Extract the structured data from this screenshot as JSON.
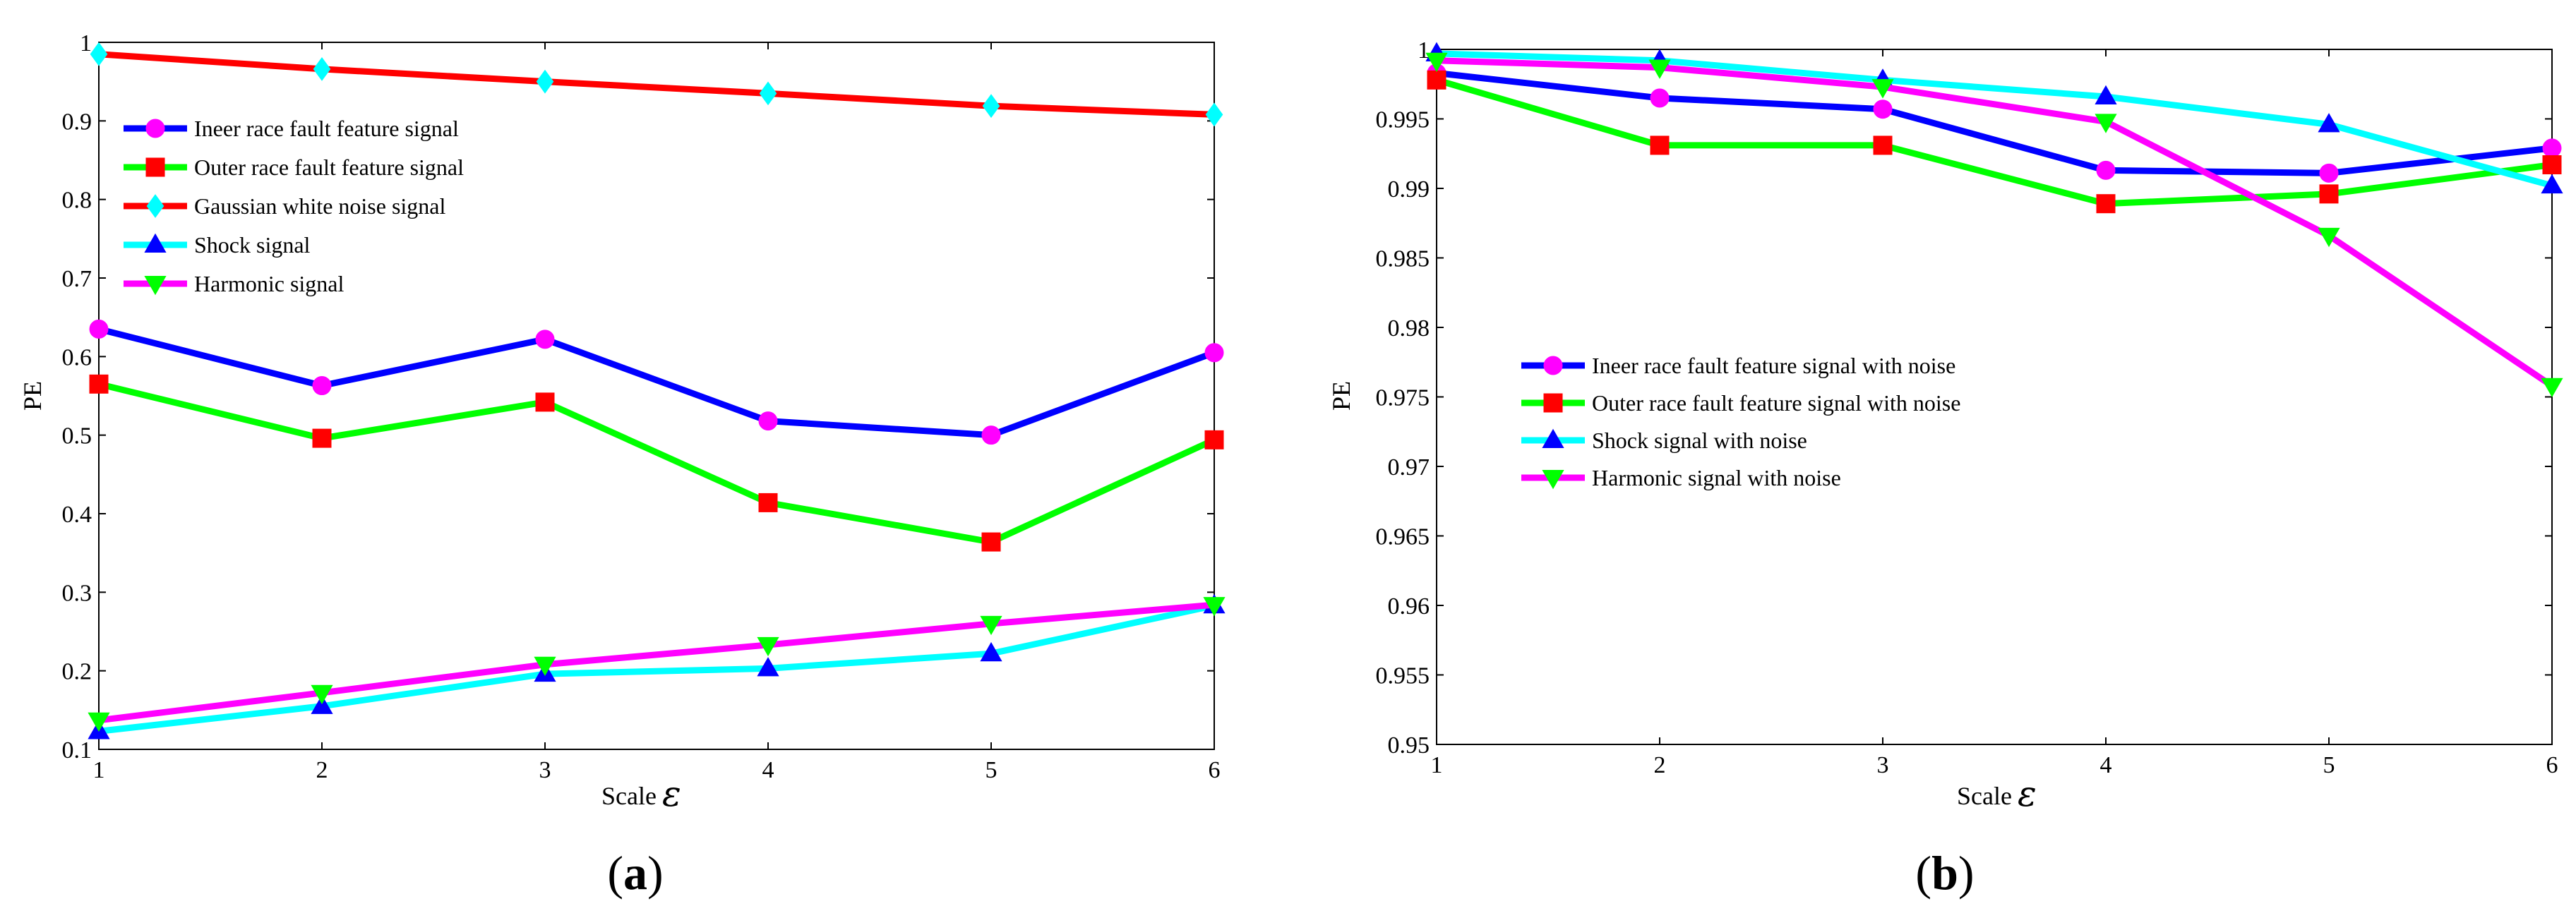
{
  "chart_data": [
    {
      "type": "line",
      "panel_label": "a",
      "xlabel": "Scale",
      "xlabel_symbol": "ε",
      "ylabel": "PE",
      "x": [
        1,
        2,
        3,
        4,
        5,
        6
      ],
      "xlim": [
        1,
        6
      ],
      "ylim": [
        0.1,
        1.0
      ],
      "yticks": [
        0.1,
        0.2,
        0.3,
        0.4,
        0.5,
        0.6,
        0.7,
        0.8,
        0.9,
        1.0
      ],
      "ytick_labels": [
        "0.1",
        "0.2",
        "0.3",
        "0.4",
        "0.5",
        "0.6",
        "0.7",
        "0.8",
        "0.9",
        "1"
      ],
      "legend_position": "top-left",
      "series": [
        {
          "name": "Ineer race fault feature signal",
          "line_color": "#0000ff",
          "marker": "circle",
          "marker_color": "#ff00ff",
          "values": [
            0.635,
            0.563,
            0.622,
            0.518,
            0.5,
            0.605
          ]
        },
        {
          "name": "Outer race fault feature signal",
          "line_color": "#00ff00",
          "marker": "square",
          "marker_color": "#ff0000",
          "values": [
            0.565,
            0.496,
            0.542,
            0.414,
            0.364,
            0.494
          ]
        },
        {
          "name": "Gaussian white noise signal",
          "line_color": "#ff0000",
          "marker": "diamond",
          "marker_color": "#00ffff",
          "values": [
            0.985,
            0.966,
            0.95,
            0.935,
            0.919,
            0.908
          ]
        },
        {
          "name": "Shock signal",
          "line_color": "#00ffff",
          "marker": "triangle-up",
          "marker_color": "#0000ff",
          "values": [
            0.123,
            0.155,
            0.196,
            0.203,
            0.222,
            0.283
          ]
        },
        {
          "name": "Harmonic signal",
          "line_color": "#ff00ff",
          "marker": "triangle-down",
          "marker_color": "#00ff00",
          "values": [
            0.137,
            0.172,
            0.208,
            0.233,
            0.26,
            0.284
          ]
        }
      ]
    },
    {
      "type": "line",
      "panel_label": "b",
      "xlabel": "Scale",
      "xlabel_symbol": "ε",
      "ylabel": "PE",
      "x": [
        1,
        2,
        3,
        4,
        5,
        6
      ],
      "xlim": [
        1,
        6
      ],
      "ylim": [
        0.95,
        1.0
      ],
      "yticks": [
        0.95,
        0.955,
        0.96,
        0.965,
        0.97,
        0.975,
        0.98,
        0.985,
        0.99,
        0.995,
        1.0
      ],
      "ytick_labels": [
        "0.95",
        "0.955",
        "0.96",
        "0.965",
        "0.97",
        "0.975",
        "0.98",
        "0.985",
        "0.99",
        "0.995",
        "1"
      ],
      "legend_position": "center-left",
      "series": [
        {
          "name": "Ineer race fault feature signal with noise",
          "line_color": "#0000ff",
          "marker": "circle",
          "marker_color": "#ff00ff",
          "values": [
            0.9983,
            0.9965,
            0.9957,
            0.9913,
            0.9911,
            0.9929
          ]
        },
        {
          "name": "Outer race fault feature signal with noise",
          "line_color": "#00ff00",
          "marker": "square",
          "marker_color": "#ff0000",
          "values": [
            0.9978,
            0.9931,
            0.9931,
            0.9889,
            0.9896,
            0.9917
          ]
        },
        {
          "name": "Shock signal with noise",
          "line_color": "#00ffff",
          "marker": "triangle-up",
          "marker_color": "#0000ff",
          "values": [
            0.9997,
            0.9992,
            0.9978,
            0.9966,
            0.9946,
            0.9902
          ]
        },
        {
          "name": "Harmonic signal with noise",
          "line_color": "#ff00ff",
          "marker": "triangle-down",
          "marker_color": "#00ff00",
          "values": [
            0.9992,
            0.9987,
            0.9973,
            0.9948,
            0.9866,
            0.9758
          ]
        }
      ]
    }
  ]
}
